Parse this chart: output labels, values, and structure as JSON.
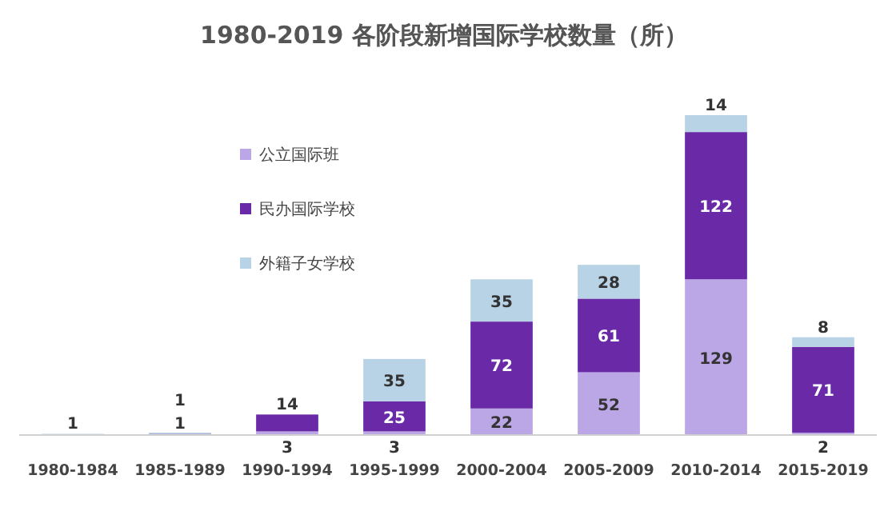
{
  "chart_data": {
    "type": "bar",
    "stacked": true,
    "title": "1980-2019 各阶段新增国际学校数量（所）",
    "categories": [
      "1980-1984",
      "1985-1989",
      "1990-1994",
      "1995-1999",
      "2000-2004",
      "2005-2009",
      "2010-2014",
      "2015-2019"
    ],
    "series": [
      {
        "name": "公立国际班",
        "color": "#bba6e6",
        "values": [
          0,
          0,
          3,
          3,
          22,
          52,
          129,
          2
        ],
        "value_labels": [
          null,
          null,
          "3",
          "3",
          "22",
          "52",
          "129",
          "2"
        ]
      },
      {
        "name": "民办国际学校",
        "color": "#6a2aa8",
        "values": [
          0,
          1,
          14,
          25,
          72,
          61,
          122,
          71
        ],
        "value_labels": [
          null,
          "1",
          "14",
          "25",
          "72",
          "61",
          "122",
          "71"
        ]
      },
      {
        "name": "外籍子女学校",
        "color": "#b8d3e6",
        "values": [
          1,
          1,
          0,
          35,
          35,
          28,
          14,
          8
        ],
        "value_labels": [
          "1",
          "1",
          null,
          "35",
          "35",
          "28",
          "14",
          "8"
        ]
      }
    ],
    "legend": "top left",
    "grid": false
  }
}
